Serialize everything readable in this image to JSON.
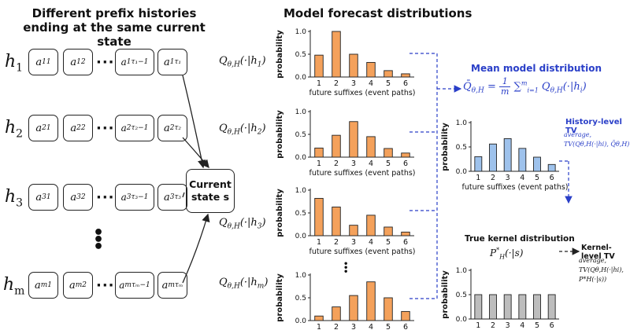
{
  "headers": {
    "left": "Different prefix histories ending at the same current state",
    "middle": "Model forecast distributions"
  },
  "histories": [
    {
      "label": "h",
      "index": "1",
      "tokens": [
        "a11",
        "a21",
        "aτ1-1",
        "aτ1"
      ]
    },
    {
      "label": "h",
      "index": "2",
      "tokens": [
        "a12",
        "a22",
        "aτ2-1",
        "aτ2"
      ]
    },
    {
      "label": "h",
      "index": "3",
      "tokens": [
        "a13",
        "a23",
        "aτ3-1",
        "aτ3"
      ]
    },
    {
      "label": "h",
      "index": "m",
      "tokens": [
        "a1m",
        "a2m",
        "aτm-1",
        "aτm"
      ]
    }
  ],
  "current_state": {
    "line1": "Current",
    "line2": "state s"
  },
  "q_labels": [
    "Qθ,H(·|h1)",
    "Qθ,H(·|h2)",
    "Qθ,H(·|h3)",
    "Qθ,H(·|hm)"
  ],
  "mean": {
    "title": "Mean model distribution",
    "formula": "Q̄θ,H = (1/m) Σi=1..m Qθ,H(·|hi)"
  },
  "history_tv": {
    "title": "History-level TV",
    "note": "average, TV(Qθ,H(·|hi), Q̄θ,H)"
  },
  "true_kernel": {
    "title": "True kernel distribution",
    "formula": "P*H(·|s)"
  },
  "kernel_tv": {
    "title": "Kernel-level TV",
    "note": "average, TV(Qθ,H(·|hi), P*H(·|s))"
  },
  "colors": {
    "orange": "#f4a15b",
    "blue": "#9ec2ec",
    "gray": "#bdbdbd",
    "accent": "#2a3fc8"
  },
  "chart_data": [
    {
      "type": "bar",
      "title": "",
      "xlabel": "future suffixes (event paths)",
      "ylabel": "probability",
      "categories": [
        "1",
        "2",
        "3",
        "4",
        "5",
        "6"
      ],
      "values": [
        0.48,
        1.0,
        0.5,
        0.32,
        0.14,
        0.07
      ],
      "ylim": [
        0,
        1.0
      ],
      "yticks": [
        "0.0",
        "0.5",
        "1.0"
      ]
    },
    {
      "type": "bar",
      "title": "",
      "xlabel": "future suffixes (event paths)",
      "ylabel": "probability",
      "categories": [
        "1",
        "2",
        "3",
        "4",
        "5",
        "6"
      ],
      "values": [
        0.2,
        0.48,
        0.78,
        0.45,
        0.19,
        0.09
      ],
      "ylim": [
        0,
        1.0
      ],
      "yticks": [
        "0.0",
        "0.5",
        "1.0"
      ]
    },
    {
      "type": "bar",
      "title": "",
      "xlabel": "future suffixes (event paths)",
      "ylabel": "probability",
      "categories": [
        "1",
        "2",
        "3",
        "4",
        "5",
        "6"
      ],
      "values": [
        0.82,
        0.63,
        0.23,
        0.45,
        0.19,
        0.08
      ],
      "ylim": [
        0,
        1.0
      ],
      "yticks": [
        "0.0",
        "0.5",
        "1.0"
      ]
    },
    {
      "type": "bar",
      "title": "",
      "xlabel": "future suffixes (event paths)",
      "ylabel": "probability",
      "categories": [
        "1",
        "2",
        "3",
        "4",
        "5",
        "6"
      ],
      "values": [
        0.1,
        0.3,
        0.55,
        0.85,
        0.5,
        0.2
      ],
      "ylim": [
        0,
        1.0
      ],
      "yticks": [
        "0.0",
        "0.5",
        "1.0"
      ]
    },
    {
      "type": "bar",
      "title": "",
      "xlabel": "future suffixes (event paths)",
      "ylabel": "probability",
      "categories": [
        "1",
        "2",
        "3",
        "4",
        "5",
        "6"
      ],
      "values": [
        0.3,
        0.56,
        0.67,
        0.47,
        0.29,
        0.14
      ],
      "ylim": [
        0,
        1.0
      ],
      "yticks": [
        "0.0",
        "0.5",
        "1.0"
      ]
    },
    {
      "type": "bar",
      "title": "",
      "xlabel": "",
      "ylabel": "probability",
      "categories": [
        "1",
        "2",
        "3",
        "4",
        "5",
        "6"
      ],
      "values": [
        0.5,
        0.5,
        0.5,
        0.5,
        0.5,
        0.5
      ],
      "ylim": [
        0,
        1.0
      ],
      "yticks": [
        "0.0",
        "0.5",
        "1.0"
      ]
    }
  ]
}
